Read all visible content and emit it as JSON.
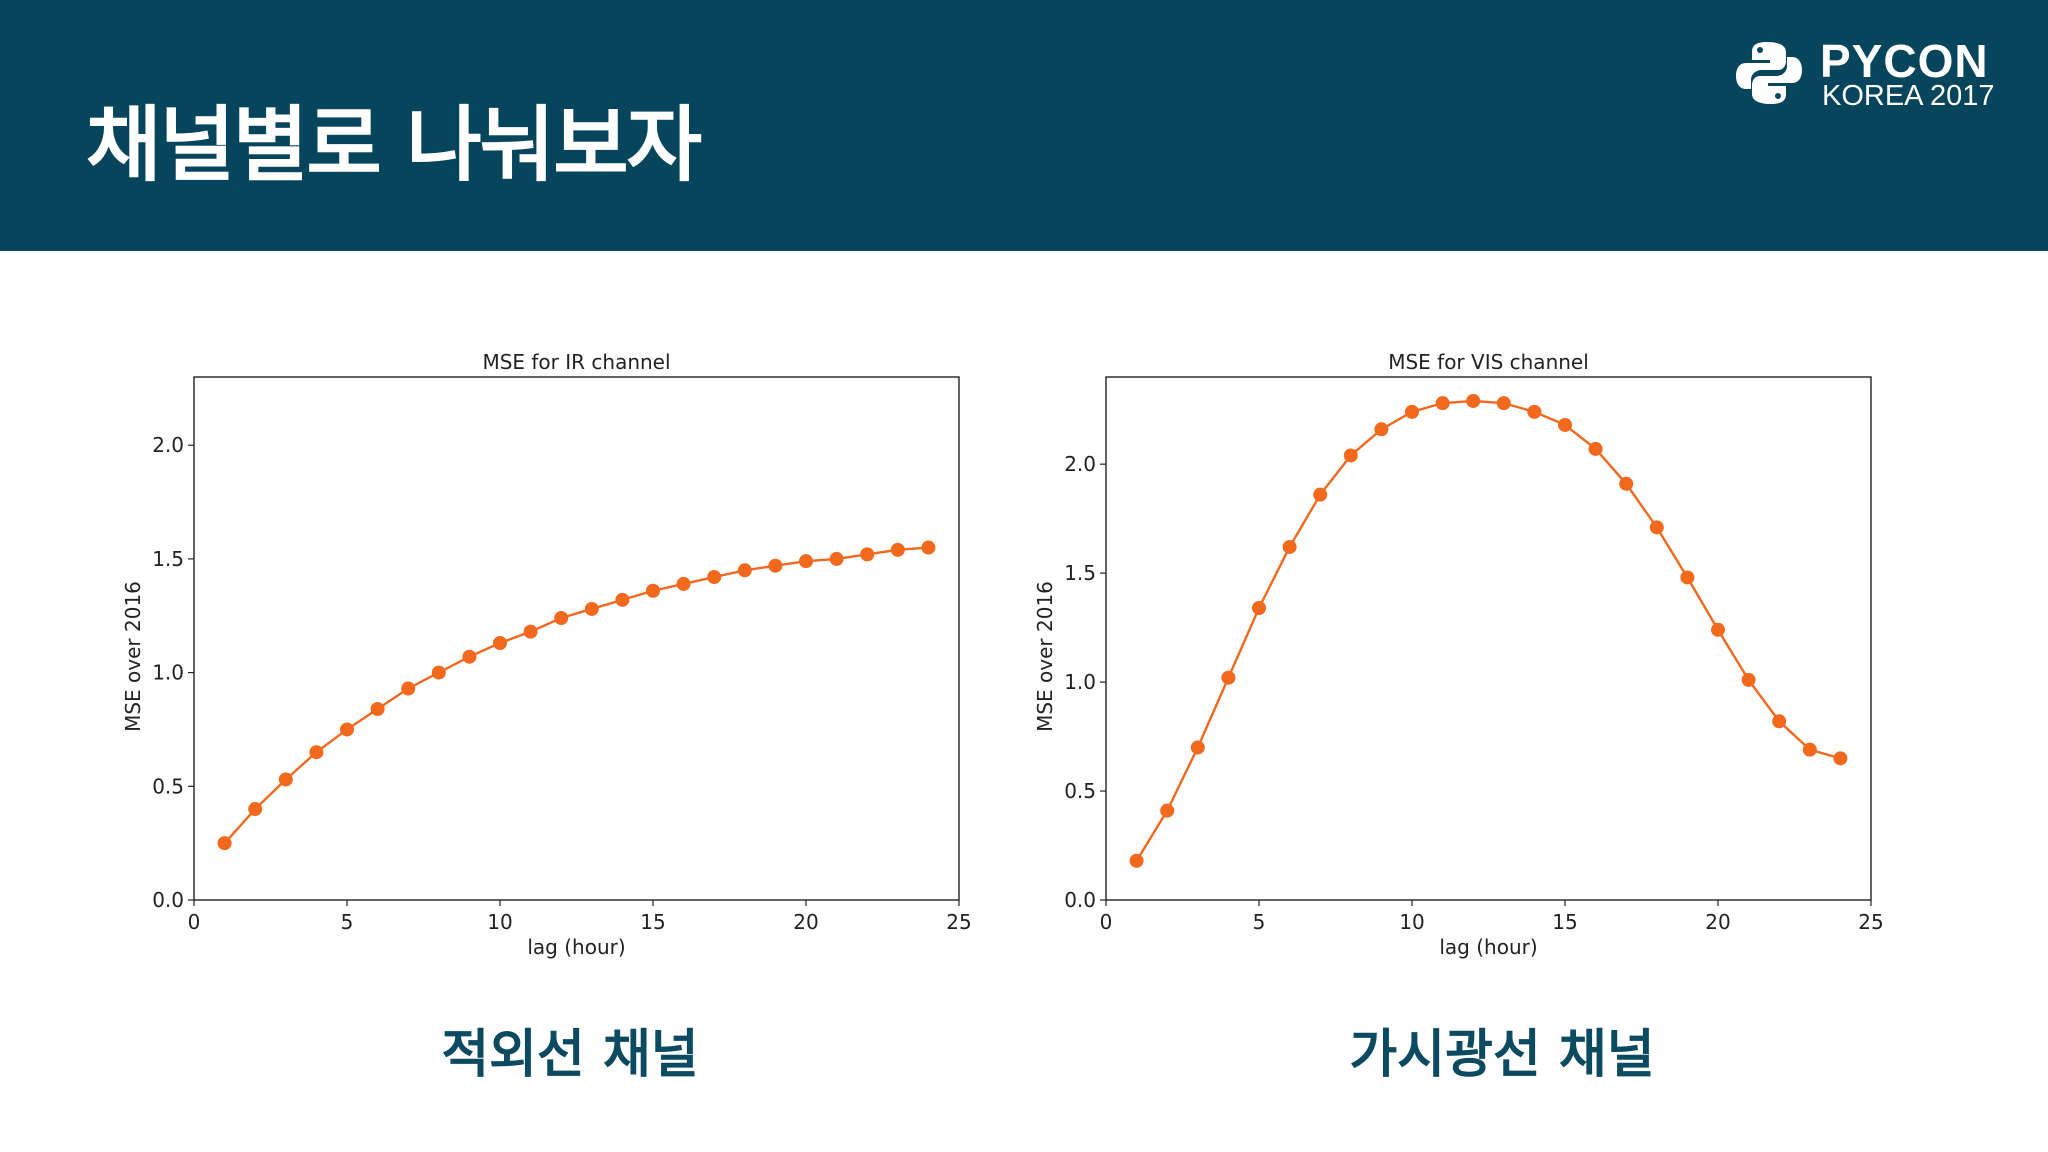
{
  "header": {
    "title": "채널별로 나눠보자",
    "background": "#07455c",
    "logo_text": "PYCON",
    "logo_subtext": "KOREA 2017",
    "logo_icon": "python-logo-icon"
  },
  "captions": [
    "적외선 채널",
    "가시광선 채널"
  ],
  "colors": {
    "series": "#f2691e",
    "caption": "#0b4a60"
  },
  "chart_data": [
    {
      "type": "line",
      "title": "MSE for IR channel",
      "xlabel": "lag (hour)",
      "ylabel": "MSE over 2016",
      "xlim": [
        0,
        25
      ],
      "ylim": [
        0,
        2.3
      ],
      "xticks": [
        "0",
        "5",
        "10",
        "15",
        "20",
        "25"
      ],
      "yticks": [
        "0.0",
        "0.5",
        "1.0",
        "1.5",
        "2.0"
      ],
      "grid": false,
      "legend": "none",
      "x": [
        1,
        2,
        3,
        4,
        5,
        6,
        7,
        8,
        9,
        10,
        11,
        12,
        13,
        14,
        15,
        16,
        17,
        18,
        19,
        20,
        21,
        22,
        23,
        24
      ],
      "series": [
        {
          "values": [
            0.25,
            0.4,
            0.53,
            0.65,
            0.75,
            0.84,
            0.93,
            1.0,
            1.07,
            1.13,
            1.18,
            1.24,
            1.28,
            1.32,
            1.36,
            1.39,
            1.42,
            1.45,
            1.47,
            1.49,
            1.5,
            1.52,
            1.54,
            1.55
          ]
        }
      ]
    },
    {
      "type": "line",
      "title": "MSE for VIS channel",
      "xlabel": "lag (hour)",
      "ylabel": "MSE over 2016",
      "xlim": [
        0,
        25
      ],
      "ylim": [
        0,
        2.4
      ],
      "xticks": [
        "0",
        "5",
        "10",
        "15",
        "20",
        "25"
      ],
      "yticks": [
        "0.0",
        "0.5",
        "1.0",
        "1.5",
        "2.0"
      ],
      "grid": false,
      "legend": "none",
      "x": [
        1,
        2,
        3,
        4,
        5,
        6,
        7,
        8,
        9,
        10,
        11,
        12,
        13,
        14,
        15,
        16,
        17,
        18,
        19,
        20,
        21,
        22,
        23,
        24
      ],
      "series": [
        {
          "values": [
            0.18,
            0.41,
            0.7,
            1.02,
            1.34,
            1.62,
            1.86,
            2.04,
            2.16,
            2.24,
            2.28,
            2.29,
            2.28,
            2.24,
            2.18,
            2.07,
            1.91,
            1.71,
            1.48,
            1.24,
            1.01,
            0.82,
            0.69,
            0.65
          ]
        }
      ]
    }
  ]
}
